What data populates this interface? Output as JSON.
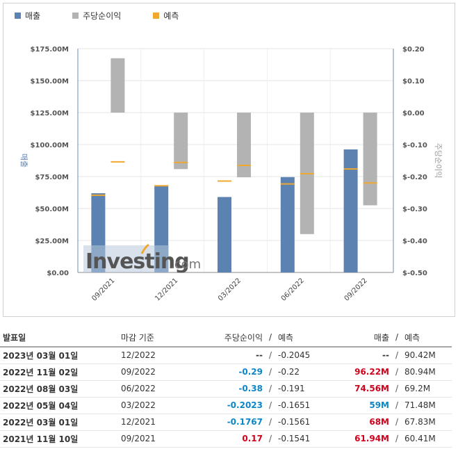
{
  "legend": [
    {
      "label": "매출",
      "color": "#5b82b0"
    },
    {
      "label": "주당순이익",
      "color": "#b3b3b3"
    },
    {
      "label": "예측",
      "color": "#f0a830"
    }
  ],
  "chart_data": {
    "type": "bar",
    "categories": [
      "09/2021",
      "12/2021",
      "03/2022",
      "06/2022",
      "09/2022"
    ],
    "ylabel_left": "매출",
    "ylabel_right": "주당순이익",
    "left_axis": {
      "ylim": [
        0,
        175
      ],
      "ticks": [
        "$0.00",
        "$25.00M",
        "$50.00M",
        "$75.00M",
        "$100.00M",
        "$125.00M",
        "$150.00M",
        "$175.00M"
      ]
    },
    "right_axis": {
      "ylim": [
        -0.5,
        0.2
      ],
      "ticks": [
        "$-0.50",
        "$-0.40",
        "$-0.30",
        "$-0.20",
        "$-0.10",
        "$0.00",
        "$0.10",
        "$0.20"
      ]
    },
    "series": [
      {
        "name": "매출",
        "axis": "left",
        "color": "#5b82b0",
        "values": [
          61.94,
          68,
          59,
          74.56,
          96.22
        ]
      },
      {
        "name": "매출 예측",
        "axis": "left",
        "color": "#f0a830",
        "values": [
          60.41,
          67.83,
          71.48,
          69.2,
          80.94
        ]
      },
      {
        "name": "주당순이익",
        "axis": "right",
        "color": "#b3b3b3",
        "values": [
          0.17,
          -0.1767,
          -0.2023,
          -0.38,
          -0.29
        ]
      },
      {
        "name": "주당순이익 예측",
        "axis": "right",
        "color": "#f0a830",
        "values": [
          -0.1541,
          -0.1561,
          -0.1651,
          -0.191,
          -0.22
        ]
      }
    ]
  },
  "watermark": {
    "brand": "Investing",
    "suffix": ".com"
  },
  "table": {
    "headers": {
      "date": "발표일",
      "period": "마감 기준",
      "eps": "주당순이익",
      "eps_sep": "/",
      "eps_fc": "예측",
      "rev": "매출",
      "rev_sep": "/",
      "rev_fc": "예측"
    },
    "rows": [
      {
        "date": "2023년 03월 01일",
        "period": "12/2022",
        "eps": "--",
        "eps_class": "neutral",
        "eps_fc": "-0.2045",
        "rev": "--",
        "rev_class": "neutral",
        "rev_fc": "90.42M"
      },
      {
        "date": "2022년 11월 02일",
        "period": "09/2022",
        "eps": "-0.29",
        "eps_class": "neg",
        "eps_fc": "-0.22",
        "rev": "96.22M",
        "rev_class": "pos",
        "rev_fc": "80.94M"
      },
      {
        "date": "2022년 08월 03일",
        "period": "06/2022",
        "eps": "-0.38",
        "eps_class": "neg",
        "eps_fc": "-0.191",
        "rev": "74.56M",
        "rev_class": "pos",
        "rev_fc": "69.2M"
      },
      {
        "date": "2022년 05월 04일",
        "period": "03/2022",
        "eps": "-0.2023",
        "eps_class": "neg",
        "eps_fc": "-0.1651",
        "rev": "59M",
        "rev_class": "neg",
        "rev_fc": "71.48M"
      },
      {
        "date": "2022년 03월 01일",
        "period": "12/2021",
        "eps": "-0.1767",
        "eps_class": "neg",
        "eps_fc": "-0.1561",
        "rev": "68M",
        "rev_class": "pos",
        "rev_fc": "67.83M"
      },
      {
        "date": "2021년 11월 10일",
        "period": "09/2021",
        "eps": "0.17",
        "eps_class": "pos",
        "eps_fc": "-0.1541",
        "rev": "61.94M",
        "rev_class": "pos",
        "rev_fc": "60.41M"
      }
    ]
  }
}
